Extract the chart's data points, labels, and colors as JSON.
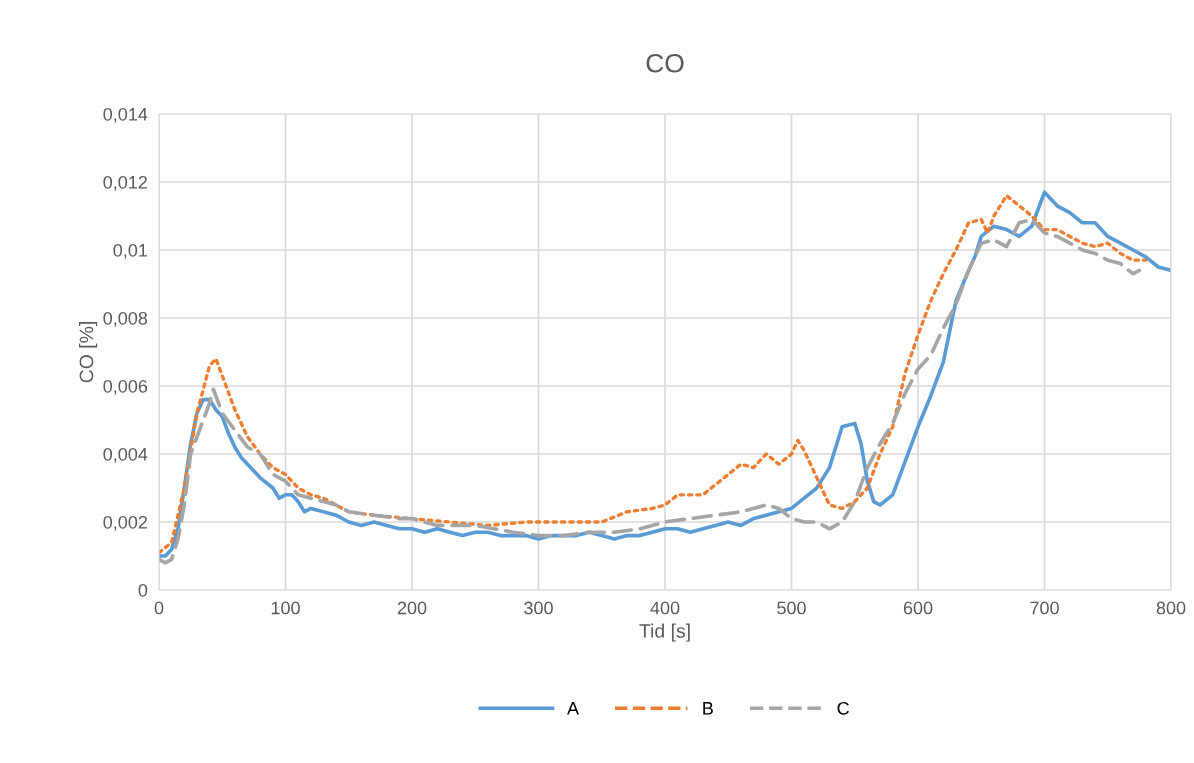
{
  "chart_data": {
    "type": "line",
    "title": "CO",
    "xlabel": "Tid [s]",
    "ylabel": "CO [%]",
    "xlim": [
      0,
      800
    ],
    "xticks": [
      0,
      100,
      200,
      300,
      400,
      500,
      600,
      700,
      800
    ],
    "ylim": [
      0,
      0.014
    ],
    "yticks": [
      {
        "value": 0,
        "label": "0"
      },
      {
        "value": 0.002,
        "label": "0,002"
      },
      {
        "value": 0.004,
        "label": "0,004"
      },
      {
        "value": 0.006,
        "label": "0,006"
      },
      {
        "value": 0.008,
        "label": "0,008"
      },
      {
        "value": 0.01,
        "label": "0,01"
      },
      {
        "value": 0.012,
        "label": "0,012"
      },
      {
        "value": 0.014,
        "label": "0,014"
      }
    ],
    "grid": true,
    "legend": "bottom",
    "marker": "none",
    "series": [
      {
        "name": "A",
        "color": "#5b9bd5",
        "line_style": "solid",
        "x": [
          0,
          5,
          10,
          15,
          20,
          25,
          30,
          35,
          40,
          45,
          50,
          55,
          60,
          65,
          70,
          80,
          90,
          95,
          100,
          105,
          110,
          115,
          120,
          130,
          140,
          150,
          160,
          170,
          180,
          190,
          200,
          210,
          220,
          230,
          240,
          250,
          260,
          270,
          280,
          290,
          300,
          310,
          320,
          330,
          340,
          350,
          360,
          370,
          380,
          390,
          400,
          410,
          420,
          430,
          440,
          450,
          460,
          470,
          480,
          490,
          500,
          510,
          520,
          530,
          540,
          550,
          555,
          560,
          565,
          570,
          580,
          590,
          600,
          610,
          620,
          630,
          640,
          645,
          650,
          660,
          670,
          680,
          690,
          700,
          710,
          720,
          730,
          740,
          750,
          760,
          770,
          780,
          790,
          800
        ],
        "values": [
          0.001,
          0.001,
          0.0012,
          0.0018,
          0.003,
          0.0043,
          0.0052,
          0.0056,
          0.0056,
          0.0053,
          0.0051,
          0.0046,
          0.0042,
          0.0039,
          0.0037,
          0.0033,
          0.003,
          0.0027,
          0.0028,
          0.0028,
          0.0026,
          0.0023,
          0.0024,
          0.0023,
          0.0022,
          0.002,
          0.0019,
          0.002,
          0.0019,
          0.0018,
          0.0018,
          0.0017,
          0.0018,
          0.0017,
          0.0016,
          0.0017,
          0.0017,
          0.0016,
          0.0016,
          0.0016,
          0.0015,
          0.0016,
          0.0016,
          0.0016,
          0.0017,
          0.0016,
          0.0015,
          0.0016,
          0.0016,
          0.0017,
          0.0018,
          0.0018,
          0.0017,
          0.0018,
          0.0019,
          0.002,
          0.0019,
          0.0021,
          0.0022,
          0.0023,
          0.0024,
          0.0027,
          0.003,
          0.0036,
          0.0048,
          0.0049,
          0.0043,
          0.0032,
          0.0026,
          0.0025,
          0.0028,
          0.0038,
          0.0048,
          0.0057,
          0.0067,
          0.0085,
          0.0094,
          0.0098,
          0.0104,
          0.0107,
          0.0106,
          0.0104,
          0.0107,
          0.0117,
          0.0113,
          0.0111,
          0.0108,
          0.0108,
          0.0104,
          0.0102,
          0.01,
          0.0098,
          0.0095,
          0.0094
        ]
      },
      {
        "name": "B",
        "color": "#ed7d31",
        "line_style": "dotted",
        "x": [
          0,
          10,
          20,
          30,
          40,
          45,
          50,
          60,
          70,
          80,
          90,
          100,
          110,
          120,
          130,
          140,
          150,
          170,
          200,
          230,
          260,
          290,
          320,
          350,
          370,
          390,
          400,
          410,
          430,
          440,
          450,
          460,
          470,
          480,
          490,
          500,
          505,
          510,
          520,
          530,
          540,
          550,
          560,
          570,
          580,
          590,
          600,
          610,
          620,
          630,
          640,
          650,
          655,
          660,
          670,
          680,
          690,
          700,
          710,
          720,
          730,
          740,
          750,
          760,
          770,
          780
        ],
        "values": [
          0.0011,
          0.0014,
          0.003,
          0.0052,
          0.0066,
          0.0068,
          0.0063,
          0.0053,
          0.0045,
          0.004,
          0.0036,
          0.0034,
          0.003,
          0.0028,
          0.0027,
          0.0025,
          0.0023,
          0.0022,
          0.0021,
          0.002,
          0.0019,
          0.002,
          0.002,
          0.002,
          0.0023,
          0.0024,
          0.0025,
          0.0028,
          0.0028,
          0.0031,
          0.0034,
          0.0037,
          0.0036,
          0.004,
          0.0037,
          0.004,
          0.0044,
          0.0041,
          0.0033,
          0.0025,
          0.0024,
          0.0026,
          0.003,
          0.004,
          0.0048,
          0.0064,
          0.0075,
          0.0085,
          0.0093,
          0.01,
          0.0108,
          0.0109,
          0.0105,
          0.011,
          0.0116,
          0.0113,
          0.011,
          0.0106,
          0.0106,
          0.0104,
          0.0102,
          0.0101,
          0.0102,
          0.0099,
          0.0097,
          0.0097
        ]
      },
      {
        "name": "C",
        "color": "#a5a5a5",
        "line_style": "dashed",
        "x": [
          0,
          5,
          10,
          15,
          20,
          25,
          30,
          35,
          40,
          43,
          50,
          60,
          70,
          80,
          90,
          100,
          110,
          120,
          130,
          140,
          150,
          170,
          190,
          200,
          220,
          250,
          280,
          300,
          320,
          340,
          360,
          380,
          400,
          420,
          440,
          460,
          480,
          490,
          500,
          510,
          520,
          530,
          540,
          550,
          560,
          570,
          580,
          590,
          600,
          610,
          620,
          630,
          640,
          650,
          660,
          670,
          680,
          690,
          700,
          710,
          720,
          730,
          740,
          750,
          760,
          770,
          775
        ],
        "values": [
          0.0009,
          0.0008,
          0.0009,
          0.0015,
          0.0025,
          0.004,
          0.0045,
          0.005,
          0.0055,
          0.0059,
          0.0052,
          0.0047,
          0.0042,
          0.004,
          0.0034,
          0.0032,
          0.0028,
          0.0027,
          0.0026,
          0.0025,
          0.0023,
          0.0022,
          0.0021,
          0.0021,
          0.0019,
          0.0019,
          0.0017,
          0.0016,
          0.0016,
          0.0017,
          0.0017,
          0.0018,
          0.002,
          0.0021,
          0.0022,
          0.0023,
          0.0025,
          0.0024,
          0.0021,
          0.002,
          0.002,
          0.0018,
          0.002,
          0.0026,
          0.0036,
          0.0043,
          0.0049,
          0.0058,
          0.0065,
          0.0069,
          0.0077,
          0.0084,
          0.0094,
          0.0102,
          0.0103,
          0.0101,
          0.0108,
          0.0109,
          0.0105,
          0.0104,
          0.0102,
          0.01,
          0.0099,
          0.0097,
          0.0096,
          0.0093,
          0.0094
        ]
      }
    ]
  }
}
